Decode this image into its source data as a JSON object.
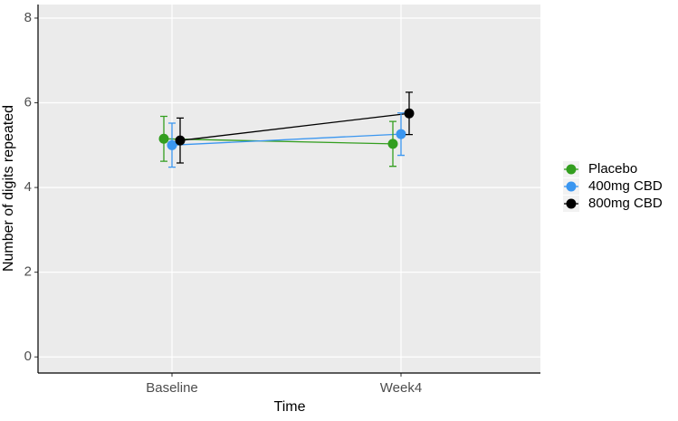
{
  "chart_data": {
    "type": "line",
    "x_label": "Time",
    "y_label": "Number of digits repeated",
    "categories": [
      "Baseline",
      "Week4"
    ],
    "series": [
      {
        "name": "Placebo",
        "color": "#339e1f",
        "values": [
          5.15,
          5.03
        ],
        "errors": [
          0.53,
          0.53
        ]
      },
      {
        "name": "400mg CBD",
        "color": "#3a96f0",
        "values": [
          5.0,
          5.26
        ],
        "errors": [
          0.52,
          0.5
        ]
      },
      {
        "name": "800mg CBD",
        "color": "#000000",
        "values": [
          5.11,
          5.75
        ],
        "errors": [
          0.53,
          0.5
        ]
      }
    ],
    "ylim": [
      -0.38,
      8.32
    ],
    "yticks": [
      0,
      2,
      4,
      6,
      8
    ],
    "grid": true
  }
}
